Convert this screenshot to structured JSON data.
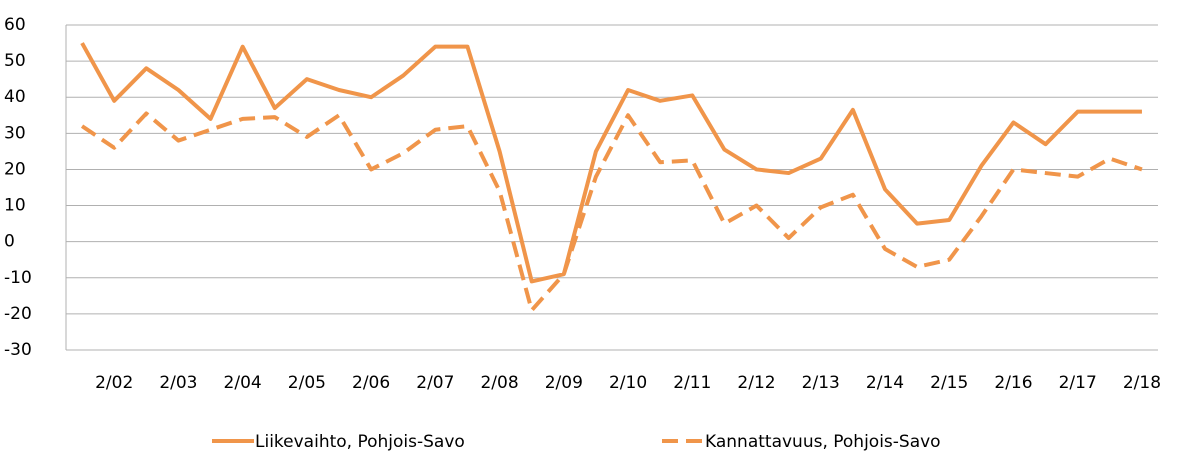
{
  "chart_data": {
    "type": "line",
    "categories": [
      null,
      "2/02",
      null,
      "2/03",
      null,
      "2/04",
      null,
      "2/05",
      null,
      "2/06",
      null,
      "2/07",
      null,
      "2/08",
      null,
      "2/09",
      null,
      "2/10",
      null,
      "2/11",
      null,
      "2/12",
      null,
      "2/13",
      null,
      "2/14",
      null,
      "2/15",
      null,
      "2/16",
      null,
      "2/17",
      null,
      "2/18"
    ],
    "series": [
      {
        "name": "Liikevaihto, Pohjois-Savo",
        "color": "#f0954a",
        "dash": false,
        "values": [
          55,
          39,
          48,
          42,
          34,
          54,
          37,
          45,
          42,
          40,
          46,
          54,
          54,
          25,
          -11,
          -9,
          25,
          42,
          39,
          40.5,
          25.5,
          20,
          19,
          23,
          36.5,
          14.5,
          5,
          6,
          21,
          33,
          27,
          36,
          36,
          36
        ]
      },
      {
        "name": "Kannattavuus, Pohjois-Savo",
        "color": "#f0954a",
        "dash": true,
        "values": [
          32,
          26,
          35.5,
          28,
          31,
          34,
          34.5,
          29,
          35,
          20,
          24.5,
          31,
          32,
          14,
          -19,
          -9,
          18,
          35,
          22,
          22.5,
          5,
          10,
          1,
          9.5,
          13,
          -2,
          -7,
          -5,
          7,
          20,
          19,
          18,
          23,
          20
        ]
      }
    ],
    "ylim": [
      -30,
      60
    ],
    "yticks": [
      -30,
      -20,
      -10,
      0,
      10,
      20,
      30,
      40,
      50,
      60
    ],
    "grid": true,
    "legend": "bottom"
  }
}
